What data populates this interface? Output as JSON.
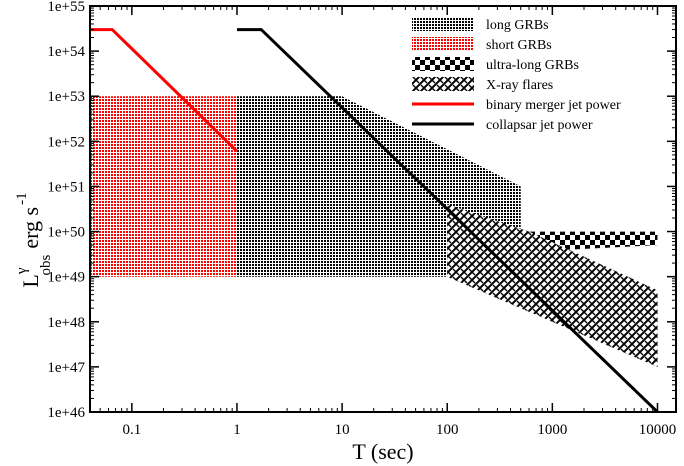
{
  "chart_data": {
    "type": "area",
    "xscale": "log",
    "yscale": "log",
    "xlim": [
      0.04,
      15000
    ],
    "ylim": [
      1e+46,
      1e+55
    ],
    "xlabel": "T (sec)",
    "ylabel": {
      "base": "L",
      "superscript": "γ",
      "subscript": "obs",
      "unit": "erg s",
      "unit_exponent": "-1"
    },
    "x_ticks": [
      {
        "value": 0.1,
        "label": "0.1"
      },
      {
        "value": 1,
        "label": "1"
      },
      {
        "value": 10,
        "label": "10"
      },
      {
        "value": 100,
        "label": "100"
      },
      {
        "value": 1000,
        "label": "1000"
      },
      {
        "value": 10000,
        "label": "10000"
      }
    ],
    "y_ticks": [
      {
        "value": 1e+46,
        "label": "1e+46"
      },
      {
        "value": 1e+47,
        "label": "1e+47"
      },
      {
        "value": 1e+48,
        "label": "1e+48"
      },
      {
        "value": 1e+49,
        "label": "1e+49"
      },
      {
        "value": 1e+50,
        "label": "1e+50"
      },
      {
        "value": 1e+51,
        "label": "1e+51"
      },
      {
        "value": 1e+52,
        "label": "1e+52"
      },
      {
        "value": 1e+53,
        "label": "1e+53"
      },
      {
        "value": 1e+54,
        "label": "1e+54"
      },
      {
        "value": 1e+55,
        "label": "1e+55"
      }
    ],
    "legend_position": "top-right",
    "regions": [
      {
        "name": "long GRBs",
        "pattern": "dense-dots",
        "color": "#000000",
        "polygon": [
          [
            1,
            1e+49
          ],
          [
            100,
            1e+49
          ],
          [
            500,
            1e+50
          ],
          [
            500,
            1e+51
          ],
          [
            10,
            1e+53
          ],
          [
            1,
            1e+53
          ]
        ]
      },
      {
        "name": "short GRBs",
        "pattern": "dense-dots",
        "color": "#ff0000",
        "polygon": [
          [
            0.04,
            1e+49
          ],
          [
            1,
            1e+49
          ],
          [
            1,
            1e+53
          ],
          [
            0.04,
            1e+53
          ]
        ]
      },
      {
        "name": "ultra-long GRBs",
        "pattern": "checker",
        "color": "#000000",
        "polygon": [
          [
            500,
            1e+50
          ],
          [
            10000,
            1e+50
          ],
          [
            10000,
            5e+49
          ],
          [
            500,
            3.5e+49
          ]
        ]
      },
      {
        "name": "X-ray flares",
        "pattern": "diagonal-weave",
        "color": "#000000",
        "polygon": [
          [
            100,
            1e+49
          ],
          [
            10000,
            1e+47
          ],
          [
            10000,
            5e+48
          ],
          [
            600,
            1e+50
          ],
          [
            100,
            4e+50
          ]
        ]
      }
    ],
    "series": [
      {
        "name": "binary merger jet power",
        "color": "#ff0000",
        "points": [
          [
            0.04,
            3e+54
          ],
          [
            0.065,
            3e+54
          ],
          [
            1,
            6e+51
          ]
        ]
      },
      {
        "name": "collapsar jet power",
        "color": "#000000",
        "points": [
          [
            1,
            3e+54
          ],
          [
            1.7,
            3e+54
          ],
          [
            10000,
            1e+46
          ]
        ]
      }
    ]
  }
}
